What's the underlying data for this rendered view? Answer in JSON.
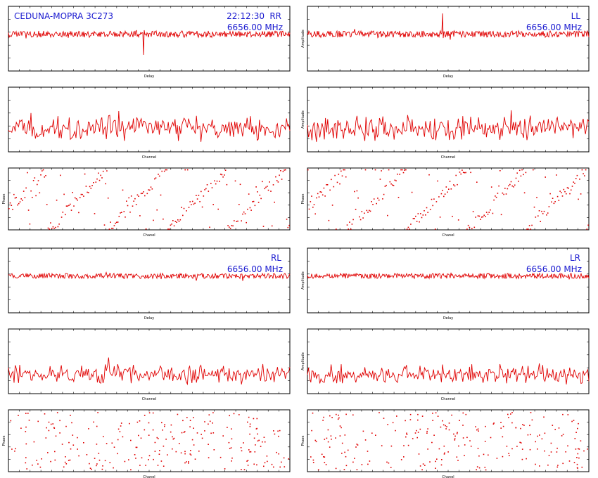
{
  "title": "CEDUNA-MOPRA 3C273",
  "time": "22:12:30",
  "frequency": "6656.00 MHz",
  "colors": {
    "trace": "#e00000",
    "annotation": "#1a1ad0",
    "frame": "#000000"
  },
  "chart_data": [
    {
      "id": "RR",
      "polarization": "RR",
      "delay": {
        "type": "line",
        "xlabel": "Delay",
        "ylabel": "",
        "spike_sign": -1,
        "spike_pos": 0.48,
        "noise": 0.05
      },
      "channel": {
        "type": "line",
        "xlabel": "Channel",
        "ylabel": "",
        "variant": "strong"
      },
      "phase": {
        "type": "scatter",
        "xlabel": "Chanel",
        "ylabel": "Phase",
        "pattern": "wrapped"
      }
    },
    {
      "id": "LL",
      "polarization": "LL",
      "delay": {
        "type": "line",
        "xlabel": "Delay",
        "ylabel": "Amplitude",
        "spike_sign": 1,
        "spike_pos": 0.48,
        "noise": 0.05
      },
      "channel": {
        "type": "line",
        "xlabel": "Channel",
        "ylabel": "Amplitude",
        "variant": "strong"
      },
      "phase": {
        "type": "scatter",
        "xlabel": "Chanel",
        "ylabel": "Phase",
        "pattern": "wrapped"
      }
    },
    {
      "id": "RL",
      "polarization": "RL",
      "delay": {
        "type": "line",
        "xlabel": "Delay",
        "ylabel": "",
        "spike_sign": 0,
        "spike_pos": 0.5,
        "noise": 0.04
      },
      "channel": {
        "type": "line",
        "xlabel": "Channel",
        "ylabel": "",
        "variant": "weak"
      },
      "phase": {
        "type": "scatter",
        "xlabel": "Chanel",
        "ylabel": "Phase",
        "pattern": "random"
      }
    },
    {
      "id": "LR",
      "polarization": "LR",
      "delay": {
        "type": "line",
        "xlabel": "Delay",
        "ylabel": "Amplitude",
        "spike_sign": 0,
        "spike_pos": 0.5,
        "noise": 0.04
      },
      "channel": {
        "type": "line",
        "xlabel": "Channel",
        "ylabel": "Amplitude",
        "variant": "weak"
      },
      "phase": {
        "type": "scatter",
        "xlabel": "Chanel",
        "ylabel": "Phase",
        "pattern": "random"
      }
    }
  ]
}
